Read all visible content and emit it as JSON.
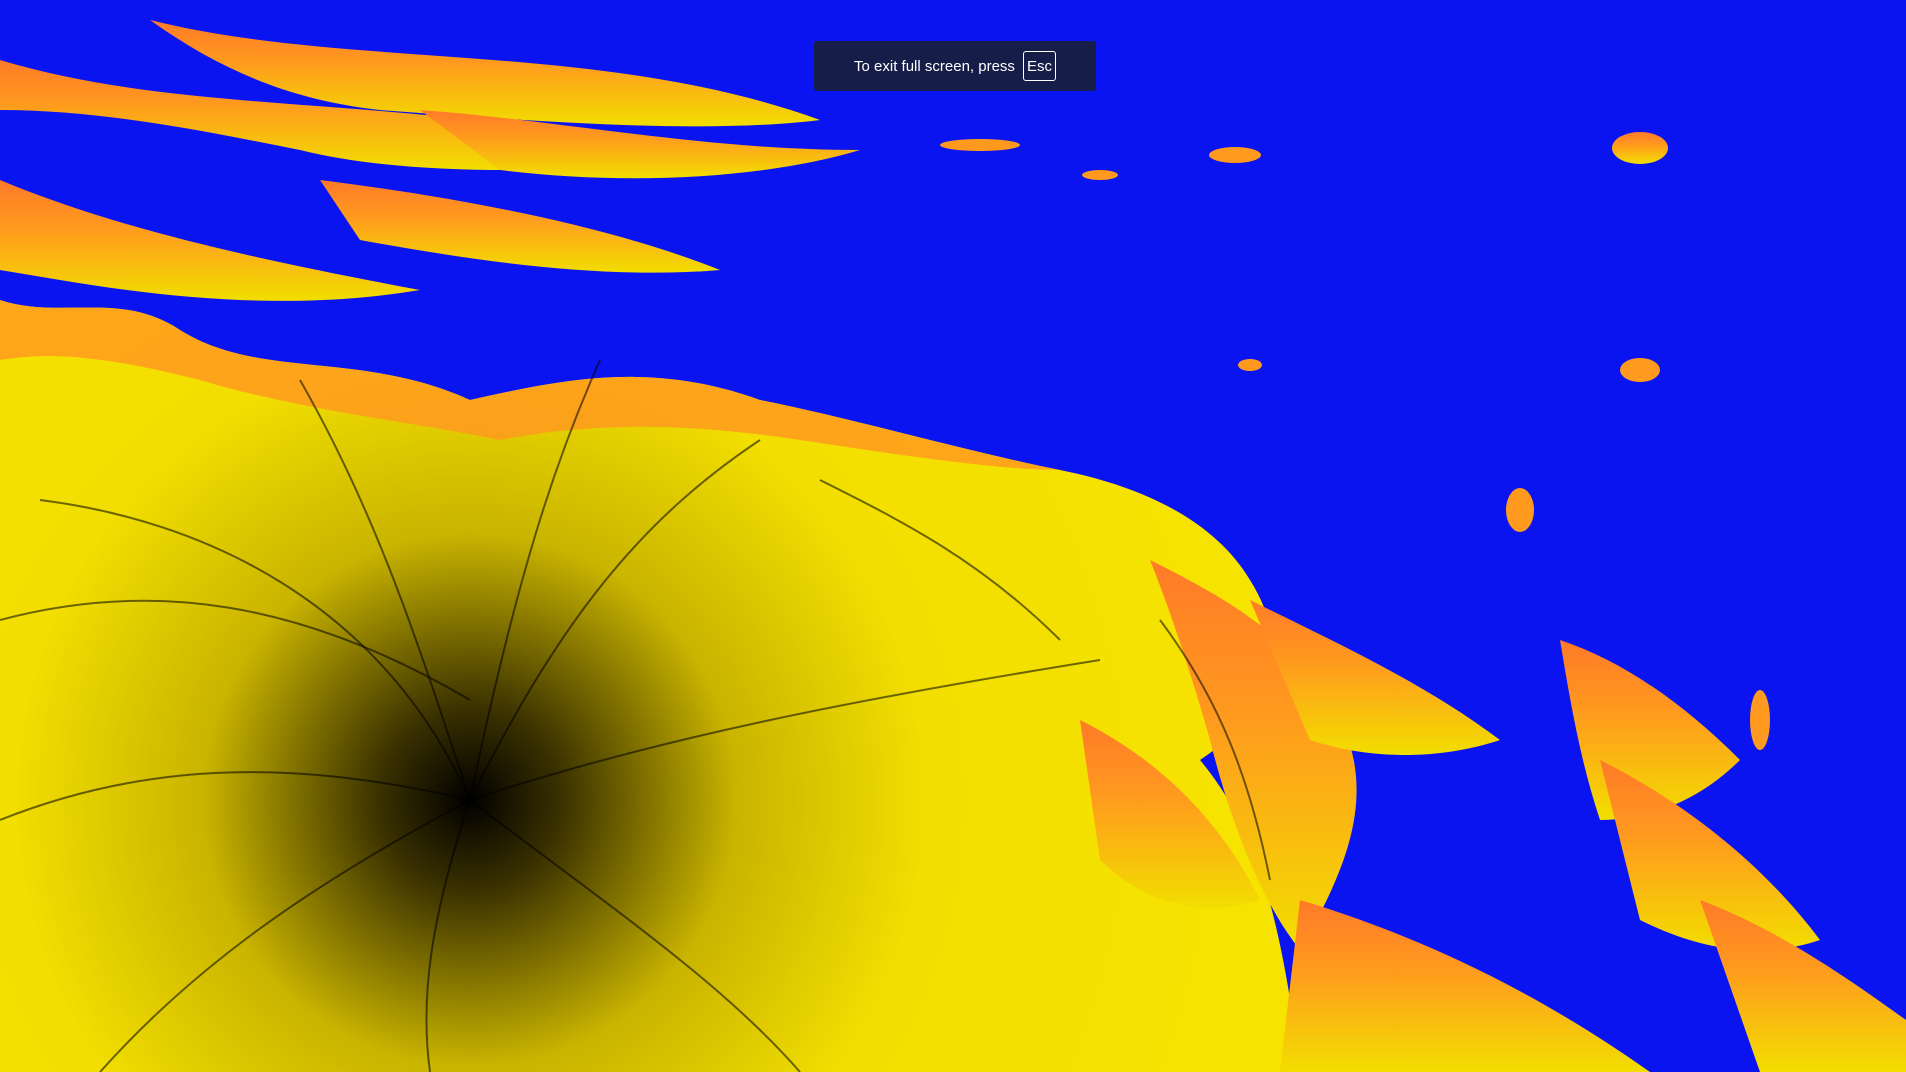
{
  "fullscreen_notice": {
    "message": "To exit full screen, press",
    "key": "Esc"
  },
  "fractal": {
    "background_color": "#0a14f0",
    "yellow_color": "#f2de00",
    "orange_color": "#ff9a1e",
    "dark_color": "#000000"
  }
}
